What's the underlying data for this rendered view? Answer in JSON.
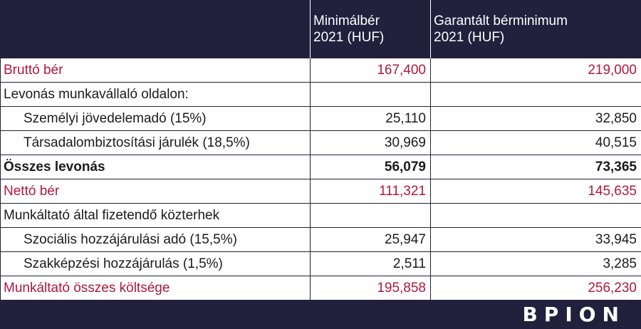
{
  "header": {
    "col1_label": "",
    "col2_line1": "Minimálbér",
    "col2_line2": "2021 (HUF)",
    "col3_line1": "Garantált bérminimum",
    "col3_line2": "2021 (HUF)"
  },
  "rows": [
    {
      "label": "Bruttó bér",
      "v1": "167,400",
      "v2": "219,000"
    },
    {
      "label": "Levonás munkavállaló oldalon:",
      "v1": "",
      "v2": ""
    },
    {
      "label": "Személyi jövedelemadó (15%)",
      "v1": "25,110",
      "v2": "32,850"
    },
    {
      "label": "Társadalombiztosítási járulék (18,5%)",
      "v1": "30,969",
      "v2": "40,515"
    },
    {
      "label": "Összes levonás",
      "v1": "56,079",
      "v2": "73,365"
    },
    {
      "label": "Nettó bér",
      "v1": "111,321",
      "v2": "145,635"
    },
    {
      "label": "Munkáltató által fizetendő közterhek",
      "v1": "",
      "v2": ""
    },
    {
      "label": "Szociális hozzájárulási adó (15,5%)",
      "v1": "25,947",
      "v2": "33,945"
    },
    {
      "label": "Szakképzési hozzájárulás (1,5%)",
      "v1": "2,511",
      "v2": "3,285"
    },
    {
      "label": "Munkáltató összes költsége",
      "v1": "195,858",
      "v2": "256,230"
    }
  ],
  "brand": {
    "logo_text": "BPION"
  },
  "colors": {
    "navy": "#22203d",
    "accent_red": "#b0173e"
  }
}
